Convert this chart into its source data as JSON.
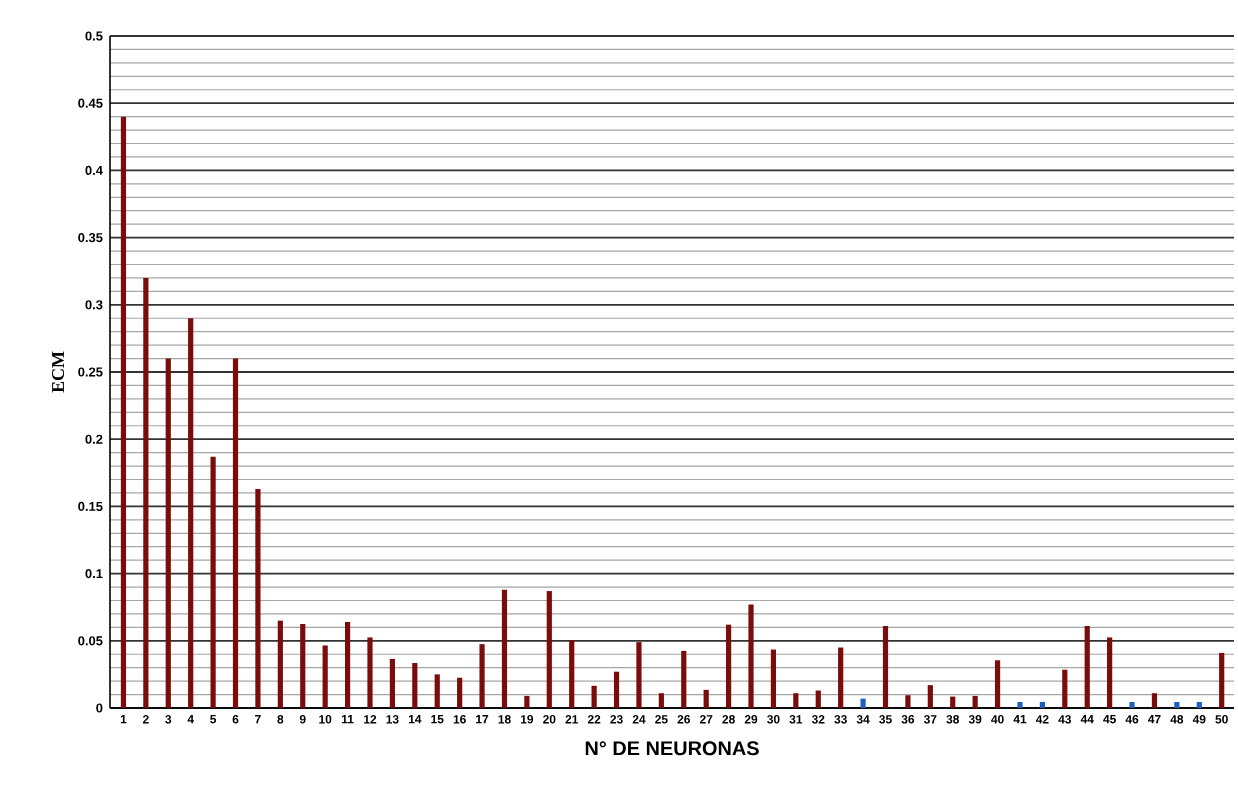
{
  "chart_data": {
    "type": "bar",
    "xlabel": "N° DE NEURONAS",
    "ylabel": "ECM",
    "categories": [
      "1",
      "2",
      "3",
      "4",
      "5",
      "6",
      "7",
      "8",
      "9",
      "10",
      "11",
      "12",
      "13",
      "14",
      "15",
      "16",
      "17",
      "18",
      "19",
      "20",
      "21",
      "22",
      "23",
      "24",
      "25",
      "26",
      "27",
      "28",
      "29",
      "30",
      "31",
      "32",
      "33",
      "34",
      "35",
      "36",
      "37",
      "38",
      "39",
      "40",
      "41",
      "42",
      "43",
      "44",
      "45",
      "46",
      "47",
      "48",
      "49",
      "50"
    ],
    "values": [
      0.44,
      0.32,
      0.26,
      0.29,
      0.187,
      0.26,
      0.163,
      0.065,
      0.0625,
      0.0465,
      0.064,
      0.0525,
      0.0365,
      0.0335,
      0.025,
      0.0225,
      0.0475,
      0.088,
      0.009,
      0.087,
      0.0505,
      0.0165,
      0.027,
      0.049,
      0.011,
      0.0425,
      0.0135,
      0.062,
      0.077,
      0.0435,
      0.011,
      0.013,
      0.045,
      0.007,
      0.061,
      0.0095,
      0.017,
      0.0085,
      0.009,
      0.0355,
      0.0045,
      0.0045,
      0.0285,
      0.061,
      0.0525,
      0.0045,
      0.011,
      0.0045,
      0.0045,
      0.041
    ],
    "colors": [
      "#7b0c0c",
      "#7b0c0c",
      "#7b0c0c",
      "#7b0c0c",
      "#7b0c0c",
      "#7b0c0c",
      "#7b0c0c",
      "#7b0c0c",
      "#7b0c0c",
      "#7b0c0c",
      "#7b0c0c",
      "#7b0c0c",
      "#7b0c0c",
      "#7b0c0c",
      "#7b0c0c",
      "#7b0c0c",
      "#7b0c0c",
      "#7b0c0c",
      "#7b0c0c",
      "#7b0c0c",
      "#7b0c0c",
      "#7b0c0c",
      "#7b0c0c",
      "#7b0c0c",
      "#7b0c0c",
      "#7b0c0c",
      "#7b0c0c",
      "#7b0c0c",
      "#7b0c0c",
      "#7b0c0c",
      "#7b0c0c",
      "#7b0c0c",
      "#7b0c0c",
      "#1f5fbf",
      "#7b0c0c",
      "#7b0c0c",
      "#7b0c0c",
      "#7b0c0c",
      "#7b0c0c",
      "#7b0c0c",
      "#1f5fbf",
      "#1f5fbf",
      "#7b0c0c",
      "#7b0c0c",
      "#7b0c0c",
      "#1f5fbf",
      "#7b0c0c",
      "#1f5fbf",
      "#1f5fbf",
      "#7b0c0c"
    ],
    "ylim": [
      0,
      0.5
    ],
    "yticks": [
      0,
      0.05,
      0.1,
      0.15,
      0.2,
      0.25,
      0.3,
      0.35,
      0.4,
      0.45,
      0.5
    ],
    "grid": "y"
  }
}
